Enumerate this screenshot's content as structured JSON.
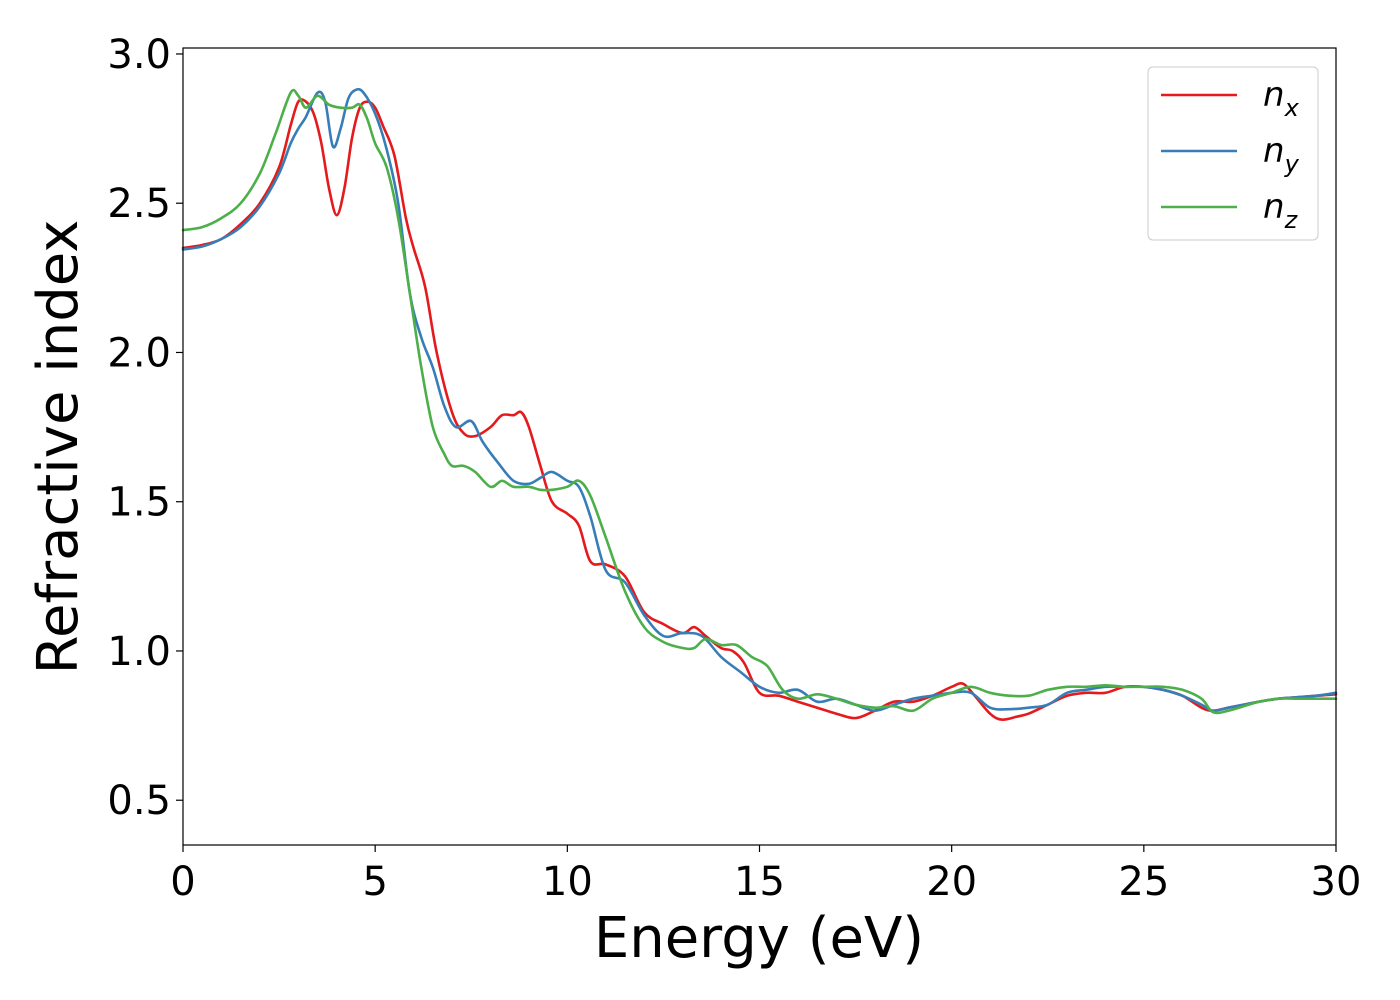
{
  "chart_data": {
    "type": "line",
    "title": "",
    "xlabel": "Energy (eV)",
    "ylabel": "Refractive index",
    "xlim": [
      0,
      30
    ],
    "ylim": [
      0.35,
      3.02
    ],
    "xticks": [
      0,
      5,
      10,
      15,
      20,
      25,
      30
    ],
    "yticks": [
      0.5,
      1.0,
      1.5,
      2.0,
      2.5,
      3.0
    ],
    "xtick_labels": [
      "0",
      "5",
      "10",
      "15",
      "20",
      "25",
      "30"
    ],
    "ytick_labels": [
      "0.5",
      "1.0",
      "1.5",
      "2.0",
      "2.5",
      "3.0"
    ],
    "grid": false,
    "legend_position": "top-right",
    "series": [
      {
        "name": "n_x",
        "legend_base": "n",
        "legend_sub": "x",
        "color": "#e41a1c",
        "points": [
          [
            0,
            2.35
          ],
          [
            0.5,
            2.36
          ],
          [
            1,
            2.38
          ],
          [
            1.5,
            2.43
          ],
          [
            2,
            2.5
          ],
          [
            2.5,
            2.62
          ],
          [
            2.8,
            2.76
          ],
          [
            3.0,
            2.84
          ],
          [
            3.2,
            2.84
          ],
          [
            3.4,
            2.8
          ],
          [
            3.6,
            2.7
          ],
          [
            3.8,
            2.55
          ],
          [
            4.0,
            2.46
          ],
          [
            4.2,
            2.55
          ],
          [
            4.4,
            2.72
          ],
          [
            4.6,
            2.82
          ],
          [
            4.8,
            2.84
          ],
          [
            5.0,
            2.82
          ],
          [
            5.2,
            2.76
          ],
          [
            5.5,
            2.66
          ],
          [
            5.8,
            2.45
          ],
          [
            6.0,
            2.35
          ],
          [
            6.3,
            2.22
          ],
          [
            6.6,
            2.0
          ],
          [
            7.0,
            1.8
          ],
          [
            7.3,
            1.73
          ],
          [
            7.6,
            1.72
          ],
          [
            8.0,
            1.75
          ],
          [
            8.3,
            1.79
          ],
          [
            8.6,
            1.79
          ],
          [
            8.8,
            1.8
          ],
          [
            9.0,
            1.75
          ],
          [
            9.3,
            1.62
          ],
          [
            9.6,
            1.5
          ],
          [
            10.0,
            1.46
          ],
          [
            10.3,
            1.42
          ],
          [
            10.6,
            1.3
          ],
          [
            11.0,
            1.29
          ],
          [
            11.5,
            1.25
          ],
          [
            12.0,
            1.13
          ],
          [
            12.5,
            1.09
          ],
          [
            13.0,
            1.06
          ],
          [
            13.3,
            1.08
          ],
          [
            13.6,
            1.05
          ],
          [
            14.0,
            1.01
          ],
          [
            14.3,
            1.0
          ],
          [
            14.6,
            0.96
          ],
          [
            15.0,
            0.86
          ],
          [
            15.5,
            0.85
          ],
          [
            16.0,
            0.83
          ],
          [
            16.5,
            0.81
          ],
          [
            17.0,
            0.79
          ],
          [
            17.5,
            0.775
          ],
          [
            18.0,
            0.8
          ],
          [
            18.5,
            0.83
          ],
          [
            19.0,
            0.83
          ],
          [
            19.5,
            0.85
          ],
          [
            20.0,
            0.88
          ],
          [
            20.3,
            0.89
          ],
          [
            20.6,
            0.85
          ],
          [
            21.0,
            0.79
          ],
          [
            21.3,
            0.77
          ],
          [
            21.7,
            0.78
          ],
          [
            22.0,
            0.79
          ],
          [
            22.5,
            0.82
          ],
          [
            23.0,
            0.85
          ],
          [
            23.5,
            0.86
          ],
          [
            24.0,
            0.86
          ],
          [
            24.5,
            0.88
          ],
          [
            25.0,
            0.88
          ],
          [
            25.5,
            0.87
          ],
          [
            26.0,
            0.85
          ],
          [
            26.5,
            0.81
          ],
          [
            26.8,
            0.8
          ],
          [
            27.2,
            0.81
          ],
          [
            27.6,
            0.82
          ],
          [
            28.0,
            0.83
          ],
          [
            28.5,
            0.84
          ],
          [
            29.0,
            0.845
          ],
          [
            29.5,
            0.85
          ],
          [
            30,
            0.855
          ]
        ]
      },
      {
        "name": "n_y",
        "legend_base": "n",
        "legend_sub": "y",
        "color": "#377eb8",
        "points": [
          [
            0,
            2.345
          ],
          [
            0.5,
            2.355
          ],
          [
            1,
            2.38
          ],
          [
            1.5,
            2.42
          ],
          [
            2,
            2.49
          ],
          [
            2.5,
            2.6
          ],
          [
            2.8,
            2.7
          ],
          [
            3.0,
            2.75
          ],
          [
            3.2,
            2.79
          ],
          [
            3.5,
            2.87
          ],
          [
            3.7,
            2.84
          ],
          [
            3.9,
            2.69
          ],
          [
            4.1,
            2.75
          ],
          [
            4.3,
            2.85
          ],
          [
            4.5,
            2.88
          ],
          [
            4.7,
            2.87
          ],
          [
            5.0,
            2.8
          ],
          [
            5.3,
            2.68
          ],
          [
            5.6,
            2.5
          ],
          [
            5.9,
            2.2
          ],
          [
            6.2,
            2.05
          ],
          [
            6.5,
            1.95
          ],
          [
            6.8,
            1.82
          ],
          [
            7.1,
            1.75
          ],
          [
            7.5,
            1.77
          ],
          [
            7.8,
            1.7
          ],
          [
            8.2,
            1.63
          ],
          [
            8.6,
            1.57
          ],
          [
            9.0,
            1.56
          ],
          [
            9.3,
            1.58
          ],
          [
            9.6,
            1.6
          ],
          [
            10.0,
            1.57
          ],
          [
            10.3,
            1.55
          ],
          [
            10.6,
            1.45
          ],
          [
            11.0,
            1.27
          ],
          [
            11.5,
            1.23
          ],
          [
            12.0,
            1.12
          ],
          [
            12.5,
            1.05
          ],
          [
            13.0,
            1.06
          ],
          [
            13.5,
            1.05
          ],
          [
            14.0,
            0.98
          ],
          [
            14.5,
            0.93
          ],
          [
            15.0,
            0.88
          ],
          [
            15.5,
            0.86
          ],
          [
            16.0,
            0.87
          ],
          [
            16.5,
            0.83
          ],
          [
            17.0,
            0.84
          ],
          [
            17.5,
            0.82
          ],
          [
            18.0,
            0.8
          ],
          [
            18.5,
            0.82
          ],
          [
            19.0,
            0.84
          ],
          [
            19.5,
            0.85
          ],
          [
            20.0,
            0.86
          ],
          [
            20.5,
            0.86
          ],
          [
            21.0,
            0.81
          ],
          [
            21.5,
            0.805
          ],
          [
            22.0,
            0.81
          ],
          [
            22.5,
            0.82
          ],
          [
            23.0,
            0.86
          ],
          [
            23.5,
            0.87
          ],
          [
            24.0,
            0.88
          ],
          [
            24.5,
            0.88
          ],
          [
            25.0,
            0.88
          ],
          [
            25.5,
            0.87
          ],
          [
            26.0,
            0.85
          ],
          [
            26.5,
            0.82
          ],
          [
            26.8,
            0.8
          ],
          [
            27.2,
            0.81
          ],
          [
            27.6,
            0.82
          ],
          [
            28.0,
            0.83
          ],
          [
            28.5,
            0.84
          ],
          [
            29.0,
            0.845
          ],
          [
            29.5,
            0.85
          ],
          [
            30,
            0.86
          ]
        ]
      },
      {
        "name": "n_z",
        "legend_base": "n",
        "legend_sub": "z",
        "color": "#4daf4a",
        "points": [
          [
            0,
            2.41
          ],
          [
            0.5,
            2.42
          ],
          [
            1,
            2.45
          ],
          [
            1.5,
            2.5
          ],
          [
            2,
            2.6
          ],
          [
            2.4,
            2.73
          ],
          [
            2.8,
            2.87
          ],
          [
            3.0,
            2.86
          ],
          [
            3.2,
            2.82
          ],
          [
            3.5,
            2.86
          ],
          [
            3.8,
            2.83
          ],
          [
            4.1,
            2.82
          ],
          [
            4.4,
            2.82
          ],
          [
            4.6,
            2.83
          ],
          [
            4.8,
            2.78
          ],
          [
            5.0,
            2.7
          ],
          [
            5.3,
            2.62
          ],
          [
            5.6,
            2.45
          ],
          [
            5.9,
            2.2
          ],
          [
            6.2,
            1.95
          ],
          [
            6.5,
            1.75
          ],
          [
            6.8,
            1.66
          ],
          [
            7.0,
            1.62
          ],
          [
            7.3,
            1.62
          ],
          [
            7.6,
            1.6
          ],
          [
            8.0,
            1.55
          ],
          [
            8.3,
            1.57
          ],
          [
            8.6,
            1.55
          ],
          [
            9.0,
            1.55
          ],
          [
            9.3,
            1.54
          ],
          [
            9.6,
            1.54
          ],
          [
            10.0,
            1.55
          ],
          [
            10.3,
            1.57
          ],
          [
            10.6,
            1.52
          ],
          [
            11.0,
            1.38
          ],
          [
            11.5,
            1.2
          ],
          [
            12.0,
            1.08
          ],
          [
            12.5,
            1.03
          ],
          [
            13.0,
            1.01
          ],
          [
            13.3,
            1.01
          ],
          [
            13.6,
            1.04
          ],
          [
            14.0,
            1.02
          ],
          [
            14.4,
            1.02
          ],
          [
            14.8,
            0.98
          ],
          [
            15.2,
            0.95
          ],
          [
            15.6,
            0.87
          ],
          [
            16.0,
            0.84
          ],
          [
            16.5,
            0.855
          ],
          [
            17.0,
            0.84
          ],
          [
            17.5,
            0.82
          ],
          [
            18.0,
            0.81
          ],
          [
            18.5,
            0.815
          ],
          [
            19.0,
            0.8
          ],
          [
            19.5,
            0.84
          ],
          [
            20.0,
            0.86
          ],
          [
            20.5,
            0.88
          ],
          [
            21.0,
            0.86
          ],
          [
            21.5,
            0.85
          ],
          [
            22.0,
            0.85
          ],
          [
            22.5,
            0.87
          ],
          [
            23.0,
            0.88
          ],
          [
            23.5,
            0.88
          ],
          [
            24.0,
            0.885
          ],
          [
            24.5,
            0.88
          ],
          [
            25.0,
            0.88
          ],
          [
            25.5,
            0.88
          ],
          [
            26.0,
            0.87
          ],
          [
            26.5,
            0.84
          ],
          [
            26.8,
            0.795
          ],
          [
            27.2,
            0.8
          ],
          [
            27.6,
            0.815
          ],
          [
            28.0,
            0.83
          ],
          [
            28.5,
            0.84
          ],
          [
            29.0,
            0.84
          ],
          [
            29.5,
            0.84
          ],
          [
            30,
            0.84
          ]
        ]
      }
    ]
  }
}
